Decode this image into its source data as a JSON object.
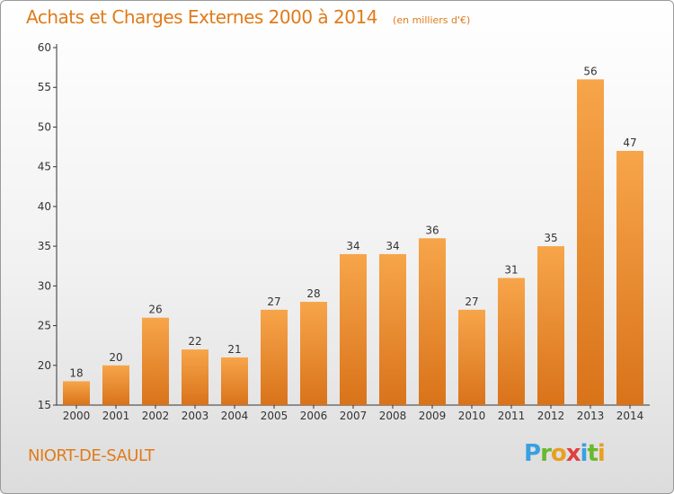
{
  "chart_data": {
    "type": "bar",
    "title": "Achats et Charges Externes 2000 à 2014",
    "subtitle": "(en milliers d'€)",
    "categories": [
      "2000",
      "2001",
      "2002",
      "2003",
      "2004",
      "2005",
      "2006",
      "2007",
      "2008",
      "2009",
      "2010",
      "2011",
      "2012",
      "2013",
      "2014"
    ],
    "values": [
      18,
      20,
      26,
      22,
      21,
      27,
      28,
      34,
      34,
      36,
      27,
      31,
      35,
      56,
      47
    ],
    "ylim": [
      15,
      60
    ],
    "yticks": [
      15,
      20,
      25,
      30,
      35,
      40,
      45,
      50,
      55,
      60
    ],
    "xlabel": "",
    "ylabel": "",
    "grid": false,
    "legend": "none",
    "bar_color_light": "#f7a54a",
    "bar_color_dark": "#d9731a"
  },
  "place_name": "NIORT-DE-SAULT",
  "logo": {
    "text": "Proxiti",
    "letters": [
      "P",
      "r",
      "o",
      "x",
      "i",
      "t",
      "i"
    ]
  },
  "colors": {
    "accent": "#e07b1a"
  }
}
